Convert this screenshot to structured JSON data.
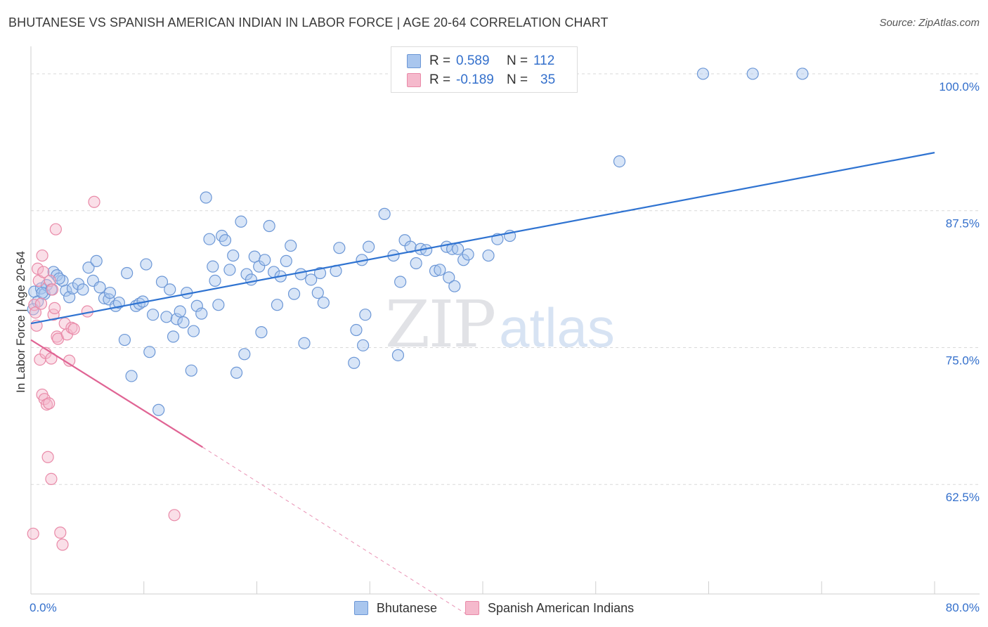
{
  "header": {
    "title": "BHUTANESE VS SPANISH AMERICAN INDIAN IN LABOR FORCE | AGE 20-64 CORRELATION CHART",
    "source": "Source: ZipAtlas.com"
  },
  "watermark": {
    "zip": "ZIP",
    "atlas": "atlas"
  },
  "colors": {
    "blue_fill": "#a9c6ee",
    "blue_stroke": "#6c97d6",
    "blue_line": "#2f73d1",
    "pink_fill": "#f5b9cc",
    "pink_stroke": "#e98aa8",
    "pink_line": "#e06494",
    "tick_label": "#3470cc",
    "grid": "#d9d9d9"
  },
  "legend_top": [
    {
      "name": "Bhutanese",
      "r_label": "R =",
      "r_value": "0.589",
      "n_label": "N =",
      "n_value": "112"
    },
    {
      "name": "Spanish American Indians",
      "r_label": "R =",
      "r_value": "-0.189",
      "n_label": "N =",
      "n_value": "35"
    }
  ],
  "legend_bottom": [
    "Bhutanese",
    "Spanish American Indians"
  ],
  "chart_data": {
    "type": "scatter",
    "xlabel": "",
    "ylabel": "In Labor Force | Age 20-64",
    "xlim": [
      0,
      80
    ],
    "ylim": [
      52.5,
      102.5
    ],
    "x_tick_labels": [
      {
        "value": 0,
        "label": "0.0%"
      },
      {
        "value": 80,
        "label": "80.0%"
      }
    ],
    "y_tick_labels": [
      {
        "value": 62.5,
        "label": "62.5%"
      },
      {
        "value": 75.0,
        "label": "75.0%"
      },
      {
        "value": 87.5,
        "label": "87.5%"
      },
      {
        "value": 100.0,
        "label": "100.0%"
      }
    ],
    "grid": "horizontal dashed",
    "legend": "top-center",
    "series": [
      {
        "name": "Bhutanese",
        "trend": {
          "x": [
            0,
            80
          ],
          "y": [
            77.2,
            92.8
          ]
        },
        "points": [
          [
            0.3,
            80.1
          ],
          [
            0.6,
            79.2
          ],
          [
            0.9,
            80.4
          ],
          [
            1.2,
            79.9
          ],
          [
            1.4,
            80.7
          ],
          [
            1.8,
            80.3
          ],
          [
            2.0,
            81.9
          ],
          [
            2.3,
            81.6
          ],
          [
            2.8,
            81.1
          ],
          [
            3.1,
            80.2
          ],
          [
            3.4,
            79.6
          ],
          [
            3.7,
            80.4
          ],
          [
            4.2,
            80.8
          ],
          [
            4.6,
            80.3
          ],
          [
            5.1,
            82.3
          ],
          [
            5.5,
            81.1
          ],
          [
            5.8,
            82.9
          ],
          [
            6.1,
            80.5
          ],
          [
            6.5,
            79.5
          ],
          [
            6.9,
            79.4
          ],
          [
            7.0,
            80.0
          ],
          [
            7.5,
            78.8
          ],
          [
            7.8,
            79.1
          ],
          [
            8.3,
            75.7
          ],
          [
            8.5,
            81.8
          ],
          [
            8.9,
            72.4
          ],
          [
            9.3,
            78.8
          ],
          [
            9.6,
            79.0
          ],
          [
            9.9,
            79.2
          ],
          [
            10.2,
            82.6
          ],
          [
            10.5,
            74.6
          ],
          [
            10.8,
            78.0
          ],
          [
            11.3,
            69.3
          ],
          [
            11.6,
            81.0
          ],
          [
            12.0,
            77.8
          ],
          [
            12.3,
            80.3
          ],
          [
            12.6,
            76.0
          ],
          [
            12.9,
            77.6
          ],
          [
            13.2,
            78.3
          ],
          [
            13.5,
            77.3
          ],
          [
            13.8,
            80.0
          ],
          [
            14.2,
            72.9
          ],
          [
            14.4,
            76.5
          ],
          [
            14.7,
            78.8
          ],
          [
            15.1,
            78.1
          ],
          [
            15.5,
            88.7
          ],
          [
            15.8,
            84.9
          ],
          [
            16.1,
            82.4
          ],
          [
            16.3,
            81.1
          ],
          [
            16.6,
            78.9
          ],
          [
            16.9,
            85.2
          ],
          [
            17.2,
            84.8
          ],
          [
            17.6,
            82.1
          ],
          [
            17.9,
            83.4
          ],
          [
            18.2,
            72.7
          ],
          [
            18.6,
            86.5
          ],
          [
            18.9,
            74.4
          ],
          [
            19.1,
            81.7
          ],
          [
            19.5,
            81.2
          ],
          [
            19.8,
            83.3
          ],
          [
            20.2,
            82.4
          ],
          [
            20.4,
            76.4
          ],
          [
            20.7,
            83.0
          ],
          [
            21.1,
            86.1
          ],
          [
            21.5,
            81.9
          ],
          [
            21.8,
            78.9
          ],
          [
            22.1,
            81.5
          ],
          [
            22.6,
            82.9
          ],
          [
            23.0,
            84.3
          ],
          [
            23.3,
            79.9
          ],
          [
            23.9,
            81.7
          ],
          [
            24.2,
            75.4
          ],
          [
            24.8,
            81.2
          ],
          [
            25.4,
            80.0
          ],
          [
            25.6,
            81.8
          ],
          [
            25.9,
            79.1
          ],
          [
            27.0,
            82.0
          ],
          [
            27.3,
            84.1
          ],
          [
            28.6,
            73.6
          ],
          [
            28.8,
            76.6
          ],
          [
            29.3,
            83.0
          ],
          [
            29.4,
            75.2
          ],
          [
            29.6,
            78.0
          ],
          [
            29.9,
            84.2
          ],
          [
            31.3,
            87.2
          ],
          [
            32.1,
            83.4
          ],
          [
            32.5,
            74.3
          ],
          [
            32.7,
            81.0
          ],
          [
            33.1,
            84.8
          ],
          [
            33.6,
            84.2
          ],
          [
            34.1,
            82.7
          ],
          [
            34.5,
            84.0
          ],
          [
            35.0,
            83.9
          ],
          [
            35.8,
            82.0
          ],
          [
            36.2,
            82.1
          ],
          [
            36.8,
            84.2
          ],
          [
            37.0,
            81.4
          ],
          [
            37.3,
            84.0
          ],
          [
            37.5,
            80.6
          ],
          [
            37.8,
            84.0
          ],
          [
            38.3,
            83.0
          ],
          [
            38.7,
            83.5
          ],
          [
            40.5,
            83.4
          ],
          [
            41.3,
            84.9
          ],
          [
            42.4,
            85.2
          ],
          [
            52.1,
            92.0
          ],
          [
            59.5,
            100.0
          ],
          [
            63.9,
            100.0
          ],
          [
            68.3,
            100.0
          ],
          [
            0.2,
            78.5
          ],
          [
            1.0,
            80.0
          ],
          [
            2.5,
            81.3
          ]
        ]
      },
      {
        "name": "Spanish American Indians",
        "trend": {
          "x": [
            0,
            15.2
          ],
          "y": [
            75.7,
            65.9
          ]
        },
        "trend_dashed": {
          "x": [
            15.2,
            38.8
          ],
          "y": [
            65.9,
            50.5
          ]
        },
        "points": [
          [
            0.3,
            78.9
          ],
          [
            0.4,
            78.2
          ],
          [
            0.5,
            77.0
          ],
          [
            0.6,
            82.2
          ],
          [
            0.7,
            81.1
          ],
          [
            0.8,
            73.9
          ],
          [
            0.9,
            79.0
          ],
          [
            1.0,
            70.7
          ],
          [
            1.0,
            83.4
          ],
          [
            1.1,
            81.9
          ],
          [
            1.2,
            70.3
          ],
          [
            1.3,
            74.5
          ],
          [
            1.4,
            69.8
          ],
          [
            1.5,
            65.0
          ],
          [
            1.6,
            69.9
          ],
          [
            1.7,
            81.1
          ],
          [
            1.8,
            63.0
          ],
          [
            1.8,
            74.0
          ],
          [
            1.9,
            80.3
          ],
          [
            2.0,
            78.0
          ],
          [
            2.1,
            78.6
          ],
          [
            2.2,
            85.8
          ],
          [
            2.3,
            76.0
          ],
          [
            2.4,
            75.8
          ],
          [
            2.6,
            58.1
          ],
          [
            2.8,
            57.0
          ],
          [
            3.0,
            77.2
          ],
          [
            3.2,
            76.2
          ],
          [
            3.4,
            73.8
          ],
          [
            3.6,
            76.8
          ],
          [
            3.8,
            76.7
          ],
          [
            5.0,
            78.3
          ],
          [
            5.6,
            88.3
          ],
          [
            12.7,
            59.7
          ],
          [
            0.2,
            58.0
          ]
        ]
      }
    ]
  }
}
